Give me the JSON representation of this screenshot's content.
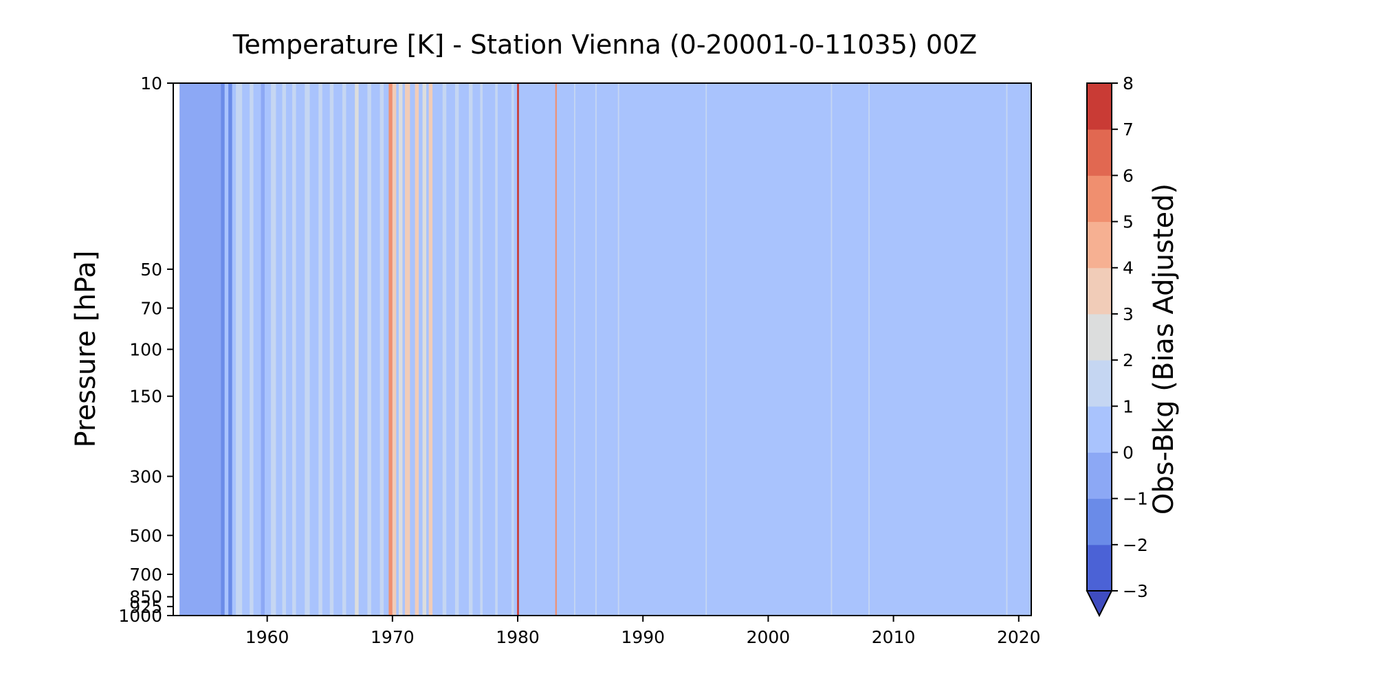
{
  "chart_data": {
    "type": "heatmap",
    "title": "Temperature [K] - Station Vienna (0-20001-0-11035) 00Z",
    "xlabel": "",
    "ylabel": "Pressure [hPa]",
    "xlim": [
      1952.5,
      2021
    ],
    "x_ticks": [
      1960,
      1970,
      1980,
      1990,
      2000,
      2010,
      2020
    ],
    "y_ticks": [
      10,
      50,
      70,
      100,
      150,
      300,
      500,
      700,
      850,
      925,
      1000
    ],
    "colorbar": {
      "label": "Obs-Bkg (Bias Adjusted)",
      "levels": [
        -3,
        -2,
        -1,
        0,
        1,
        2,
        3,
        4,
        5,
        6,
        7,
        8
      ],
      "tick_labels": [
        "−3",
        "−2",
        "−1",
        "0",
        "1",
        "2",
        "3",
        "4",
        "5",
        "6",
        "7",
        "8"
      ],
      "colors": [
        "#4b62d6",
        "#6a8be8",
        "#8ca8f5",
        "#a9c3fd",
        "#c5d6f2",
        "#dcdddd",
        "#f1ccb8",
        "#f6b092",
        "#f08f6f",
        "#e16851",
        "#c93b35"
      ],
      "extend": "min",
      "under_color": "#3f4cc0"
    },
    "background_level": 0.5,
    "bands": [
      {
        "x0": 1953.0,
        "x1": 1956.3,
        "value": -0.5
      },
      {
        "x0": 1956.3,
        "x1": 1956.6,
        "value": -1.5
      },
      {
        "x0": 1956.9,
        "x1": 1957.2,
        "value": -1.2
      },
      {
        "x0": 1957.5,
        "x1": 1958.0,
        "value": 1.4
      },
      {
        "x0": 1958.6,
        "x1": 1958.9,
        "value": 1.6
      },
      {
        "x0": 1959.5,
        "x1": 1959.8,
        "value": -0.4
      },
      {
        "x0": 1960.3,
        "x1": 1960.7,
        "value": 1.5
      },
      {
        "x0": 1961.2,
        "x1": 1961.5,
        "value": 1.8
      },
      {
        "x0": 1962.0,
        "x1": 1962.3,
        "value": 1.3
      },
      {
        "x0": 1963.0,
        "x1": 1963.4,
        "value": 1.7
      },
      {
        "x0": 1964.1,
        "x1": 1964.4,
        "value": 1.2
      },
      {
        "x0": 1965.0,
        "x1": 1965.3,
        "value": 1.9
      },
      {
        "x0": 1966.0,
        "x1": 1966.3,
        "value": 1.4
      },
      {
        "x0": 1967.0,
        "x1": 1967.3,
        "value": 2.3
      },
      {
        "x0": 1968.0,
        "x1": 1968.3,
        "value": 1.6
      },
      {
        "x0": 1969.0,
        "x1": 1969.3,
        "value": 1.4
      },
      {
        "x0": 1969.7,
        "x1": 1970.0,
        "value": 5.5
      },
      {
        "x0": 1970.0,
        "x1": 1970.3,
        "value": 3.2
      },
      {
        "x0": 1970.5,
        "x1": 1970.8,
        "value": 2.4
      },
      {
        "x0": 1971.0,
        "x1": 1971.4,
        "value": 3.3
      },
      {
        "x0": 1971.8,
        "x1": 1972.1,
        "value": 3.4
      },
      {
        "x0": 1972.4,
        "x1": 1972.7,
        "value": 2.4
      },
      {
        "x0": 1972.9,
        "x1": 1973.2,
        "value": 3.3
      },
      {
        "x0": 1974.0,
        "x1": 1974.3,
        "value": 1.3
      },
      {
        "x0": 1975.0,
        "x1": 1975.3,
        "value": 1.2
      },
      {
        "x0": 1976.1,
        "x1": 1976.4,
        "value": 1.5
      },
      {
        "x0": 1977.0,
        "x1": 1977.2,
        "value": 1.1
      },
      {
        "x0": 1978.2,
        "x1": 1978.4,
        "value": 1.3
      },
      {
        "x0": 1979.5,
        "x1": 1979.7,
        "value": 1.2
      },
      {
        "x0": 1979.95,
        "x1": 1980.1,
        "value": 7.5
      },
      {
        "x0": 1983.0,
        "x1": 1983.12,
        "value": 5.5
      },
      {
        "x0": 1984.5,
        "x1": 1984.6,
        "value": 1.2
      },
      {
        "x0": 1986.2,
        "x1": 1986.3,
        "value": 1.2
      },
      {
        "x0": 1988.0,
        "x1": 1988.1,
        "value": 1.1
      },
      {
        "x0": 1995.0,
        "x1": 1995.1,
        "value": 1.3
      },
      {
        "x0": 2005.0,
        "x1": 2005.1,
        "value": 1.4
      },
      {
        "x0": 2008.0,
        "x1": 2008.1,
        "value": 1.3
      },
      {
        "x0": 2019.0,
        "x1": 2019.1,
        "value": 1.2
      }
    ]
  }
}
